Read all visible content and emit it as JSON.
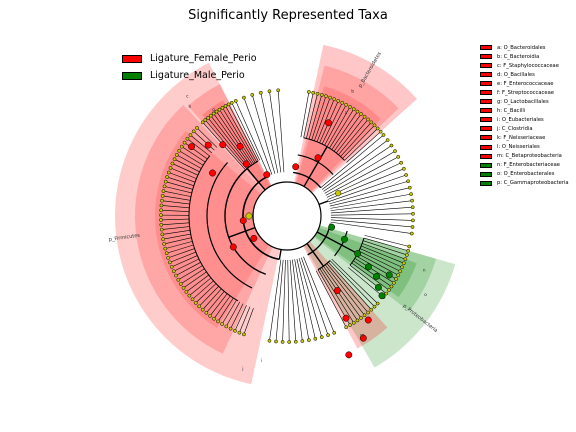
{
  "title": "Significantly Represented Taxa",
  "legend": [
    {
      "label": "Ligature_Female_Perio",
      "color": "#ff0000"
    },
    {
      "label": "Ligature_Male_Perio",
      "color": "#008000"
    }
  ],
  "key": [
    {
      "text": "a: O_Bacteroidales",
      "color": "#ff0000"
    },
    {
      "text": "b: C_Bacteroidia",
      "color": "#ff0000"
    },
    {
      "text": "c: F_Staphylococcaceae",
      "color": "#ff0000"
    },
    {
      "text": "d: O_Bacillales",
      "color": "#ff0000"
    },
    {
      "text": "e: F_Enterococcaceae",
      "color": "#ff0000"
    },
    {
      "text": "f: F_Streptococcaceae",
      "color": "#ff0000"
    },
    {
      "text": "g: O_Lactobacillales",
      "color": "#ff0000"
    },
    {
      "text": "h: C_Bacilli",
      "color": "#ff0000"
    },
    {
      "text": "i: O_Eubacteriales",
      "color": "#ff0000"
    },
    {
      "text": "j: C_Clostridia",
      "color": "#ff0000"
    },
    {
      "text": "k: F_Neisseriaceae",
      "color": "#ff0000"
    },
    {
      "text": "l: O_Neisseriales",
      "color": "#ff0000"
    },
    {
      "text": "m: C_Betaproteobacteria",
      "color": "#ff0000"
    },
    {
      "text": "n: F_Enterobacteriaceae",
      "color": "#008000"
    },
    {
      "text": "o: O_Enterobacterales",
      "color": "#008000"
    },
    {
      "text": "p: C_Gammaproteobacteria",
      "color": "#008000"
    }
  ],
  "phylum_labels": {
    "bacteroidetes": "p_Bacteroidetes",
    "firmicutes": "p_Firmicutes",
    "proteobacteria": "p_Proteobacteria"
  },
  "colors": {
    "female": "#ff0000",
    "male": "#008000",
    "node_default": "#c8c800"
  }
}
